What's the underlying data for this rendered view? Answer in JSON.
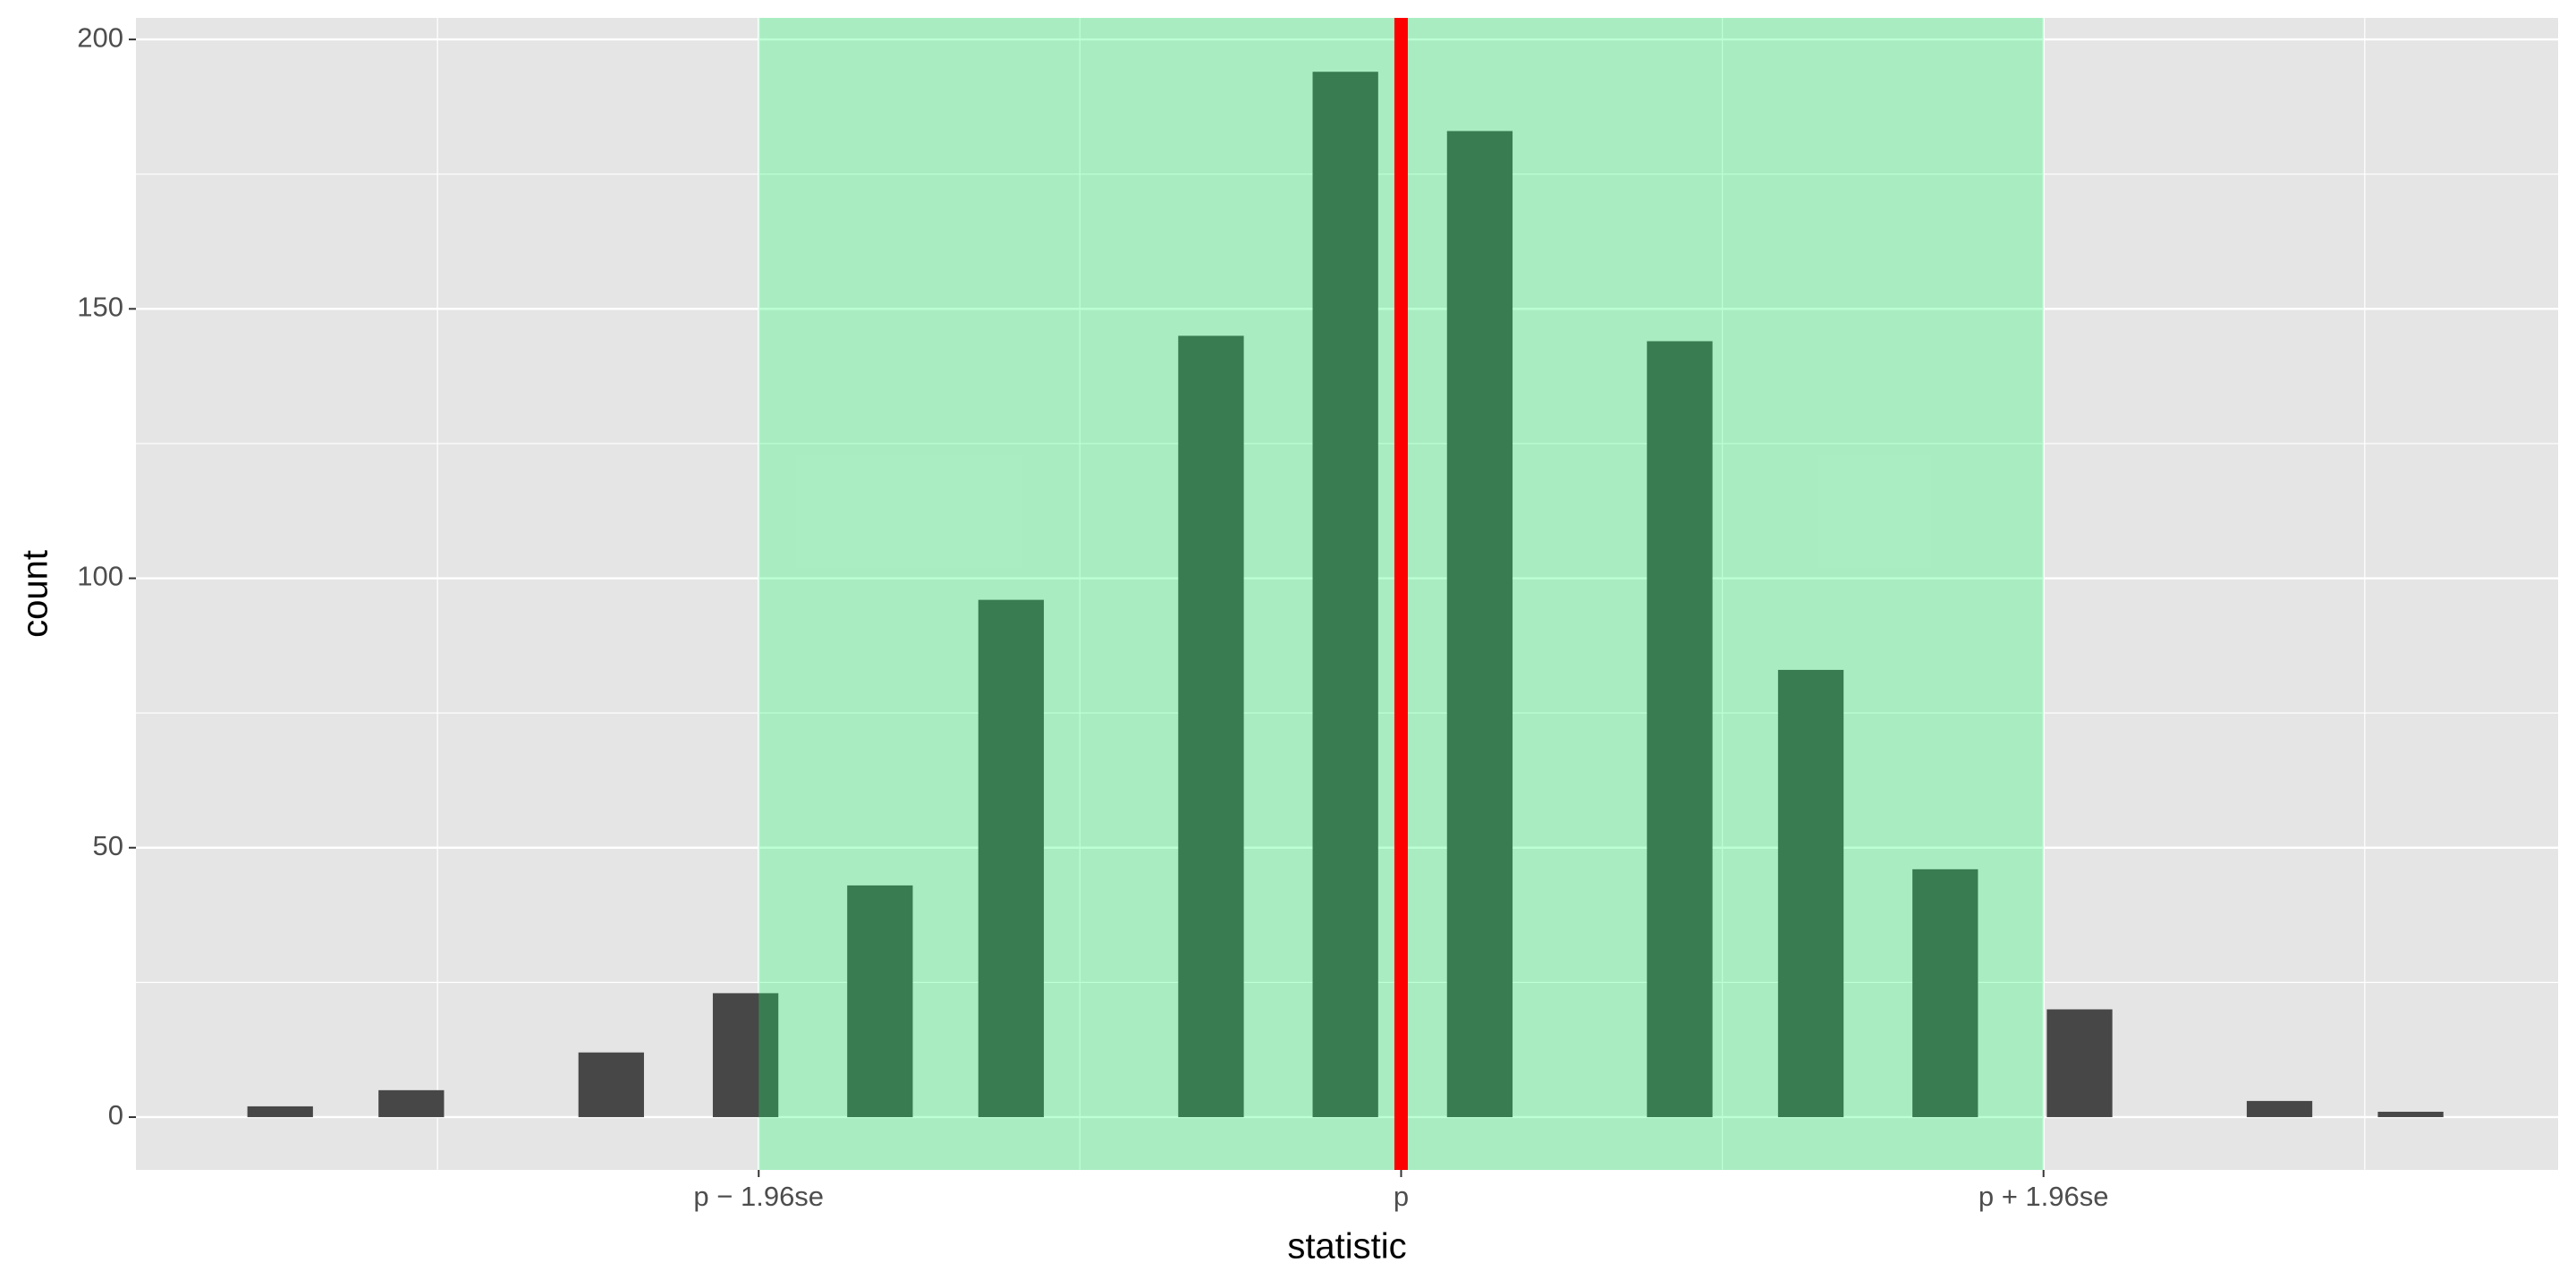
{
  "chart_data": {
    "type": "bar",
    "x_label": "statistic",
    "y_label": "count",
    "x": [
      -3.42,
      -3.02,
      -2.41,
      -2.0,
      -1.59,
      -1.19,
      -0.58,
      -0.17,
      0.24,
      0.85,
      1.25,
      1.66,
      2.07,
      2.68,
      3.08
    ],
    "values": [
      2,
      5,
      12,
      23,
      43,
      96,
      145,
      194,
      183,
      144,
      83,
      46,
      20,
      3,
      1
    ],
    "color": "#474747",
    "bar_width": 0.2,
    "xlim": [
      -3.86,
      3.53
    ],
    "ylim": [
      -9.8,
      204
    ],
    "xticks": [
      {
        "value": -1.96,
        "label": "p − 1.96se"
      },
      {
        "value": 0,
        "label": "p"
      },
      {
        "value": 1.96,
        "label": "p + 1.96se"
      }
    ],
    "yticks": [
      0,
      50,
      100,
      150,
      200
    ],
    "grid": true,
    "shade": {
      "xmin": -1.96,
      "xmax": 1.96,
      "color": "#1aff6e",
      "opacity": 0.29
    },
    "vline": {
      "x": 0,
      "color": "#ff0000"
    }
  }
}
